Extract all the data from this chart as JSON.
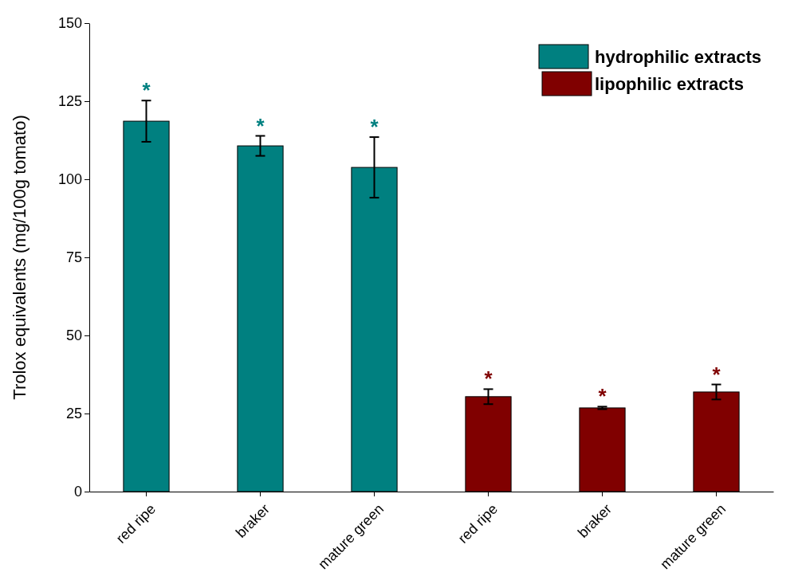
{
  "chart_data": {
    "type": "bar",
    "ylabel": "Trolox equivalents (mg/100g tomato)",
    "categories": [
      "red ripe",
      "braker",
      "mature green",
      "red ripe",
      "braker",
      "mature green"
    ],
    "series": [
      {
        "name": "hydrophilic extracts",
        "color": "#008080",
        "values": [
          118.6,
          110.7,
          103.8,
          null,
          null,
          null
        ],
        "errors": [
          6.6,
          3.2,
          9.7,
          null,
          null,
          null
        ]
      },
      {
        "name": "lipophilic extracts",
        "color": "#800000",
        "values": [
          null,
          null,
          null,
          30.4,
          26.8,
          31.9
        ],
        "errors": [
          null,
          null,
          null,
          2.4,
          0.4,
          2.4
        ]
      }
    ],
    "ylim": [
      0,
      150
    ],
    "yticks": [
      0,
      25,
      50,
      75,
      100,
      125,
      150
    ],
    "legend": "top right",
    "annotations": [
      "*",
      "*",
      "*",
      "*",
      "*",
      "*"
    ]
  }
}
